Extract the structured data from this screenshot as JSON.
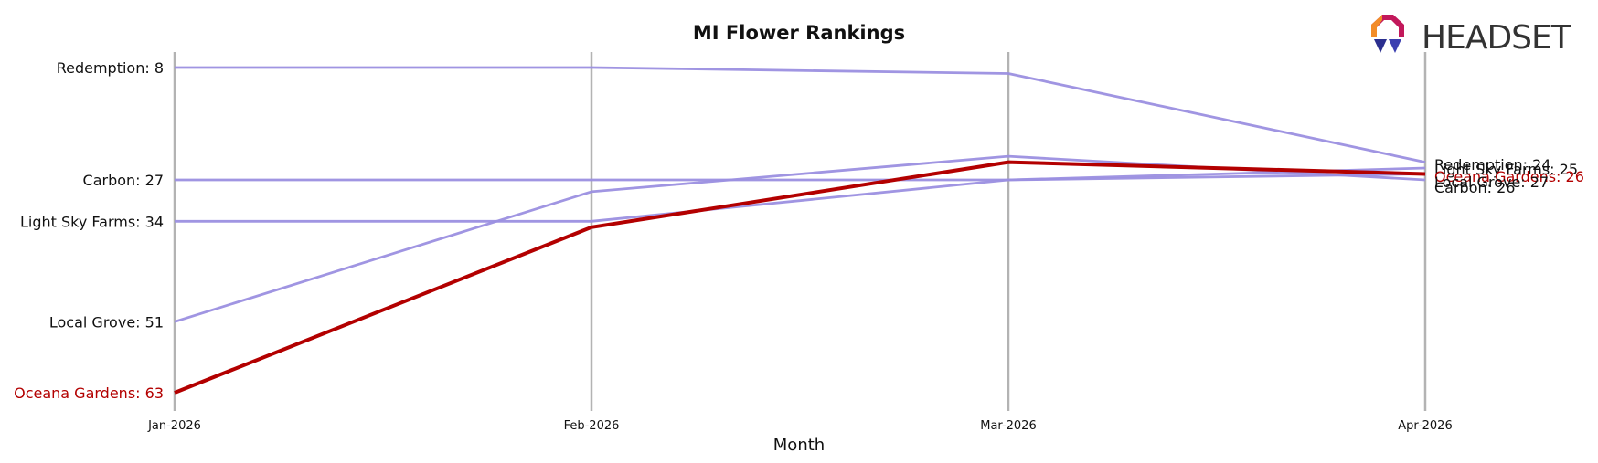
{
  "chart_data": {
    "type": "line",
    "title": "MI Flower Rankings",
    "xlabel": "Month",
    "ylabel": "",
    "categories": [
      "Jan-2026",
      "Feb-2026",
      "Mar-2026",
      "Apr-2026"
    ],
    "y_inverted": true,
    "ylim": [
      8,
      63
    ],
    "grid": false,
    "series": [
      {
        "name": "Redemption",
        "values": [
          8,
          8,
          9,
          24
        ],
        "color": "#9b8fe0",
        "highlight": false
      },
      {
        "name": "Carbon",
        "values": [
          27,
          27,
          27,
          26
        ],
        "color": "#9b8fe0",
        "highlight": false
      },
      {
        "name": "Light Sky Farms",
        "values": [
          34,
          34,
          27,
          25
        ],
        "color": "#9b8fe0",
        "highlight": false
      },
      {
        "name": "Local Grove",
        "values": [
          51,
          29,
          23,
          27
        ],
        "color": "#9b8fe0",
        "highlight": false
      },
      {
        "name": "Oceana Gardens",
        "values": [
          63,
          35,
          24,
          26
        ],
        "color": "#b30000",
        "highlight": true
      }
    ],
    "start_labels": [
      "Redemption: 8",
      "Carbon: 27",
      "Light Sky Farms: 34",
      "Local Grove: 51",
      "Oceana Gardens: 63"
    ],
    "end_labels": [
      "Redemption: 24",
      "Light Sky Farms: 25",
      "Oceana Gardens: 26",
      "Local Grove: 27",
      "Carbon: 26"
    ]
  },
  "logo": {
    "text": "HEADSET"
  },
  "colors": {
    "highlight": "#b30000",
    "series": "#9b8fe0",
    "vline": "#b3b3b3"
  }
}
